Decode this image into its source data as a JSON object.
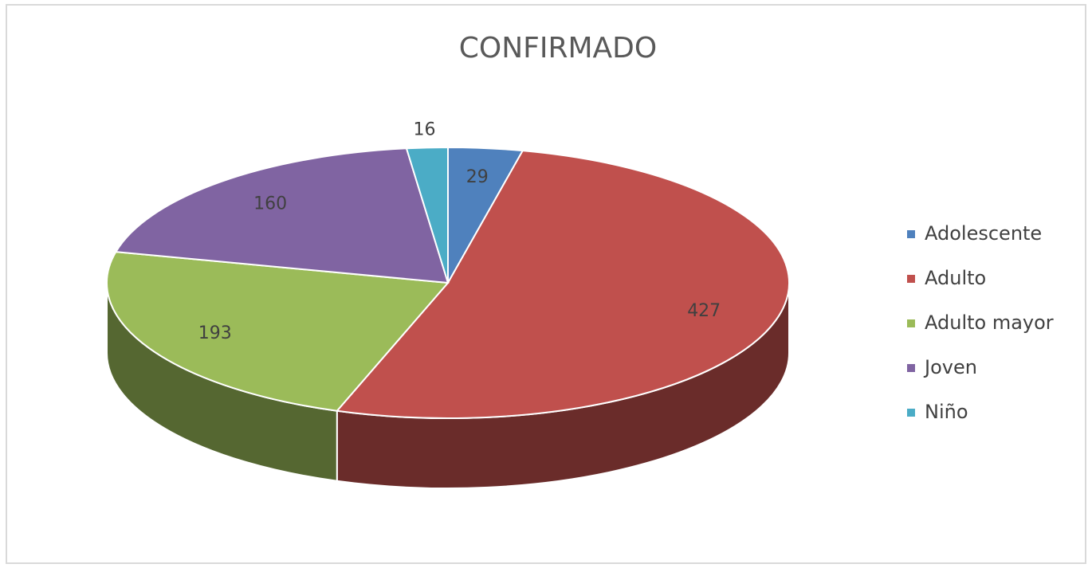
{
  "chart_data": {
    "type": "pie",
    "title": "CONFIRMADO",
    "categories": [
      "Adolescente",
      "Adulto",
      "Adulto mayor",
      "Joven",
      "Niño"
    ],
    "values": [
      29,
      427,
      193,
      160,
      16
    ],
    "colors": [
      "#4f81bd",
      "#c0504d",
      "#9bbb59",
      "#8064a2",
      "#4bacc6"
    ],
    "legend": "right"
  }
}
